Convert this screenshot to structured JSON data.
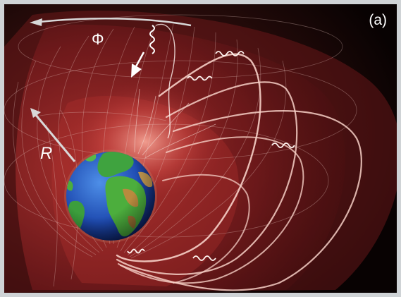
{
  "labels": {
    "panel": "(a)",
    "azimuth": "Φ",
    "radius": "R"
  },
  "colors": {
    "background": "#000000",
    "shell": "#8c1f22",
    "field_line": "#f6cfc6",
    "grid_line": "#e9c9c4",
    "arrow": "#d8d8d8",
    "border": "#cfd3d6"
  },
  "icons": {
    "planet": "earth-globe-icon",
    "azimuth_arrow": "azimuth-arrow-icon",
    "radial_arrow": "radial-arrow-icon",
    "particle_trajectory": "gyrating-particle-icon"
  }
}
